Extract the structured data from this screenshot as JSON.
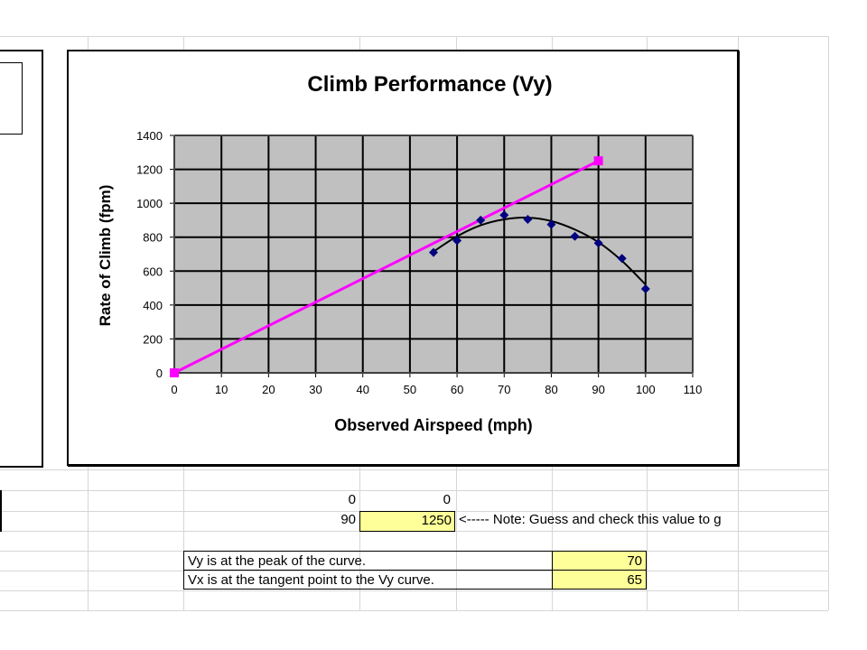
{
  "chart_data": {
    "type": "scatter",
    "title": "Climb Performance (Vy)",
    "xlabel": "Observed Airspeed (mph)",
    "ylabel": "Rate of Climb (fpm)",
    "xlim": [
      0,
      110
    ],
    "ylim": [
      0,
      1400
    ],
    "xticks": [
      0,
      10,
      20,
      30,
      40,
      50,
      60,
      70,
      80,
      90,
      100,
      110
    ],
    "yticks": [
      0,
      200,
      400,
      600,
      800,
      1000,
      1200,
      1400
    ],
    "grid": true,
    "legend": "none",
    "series": [
      {
        "type": "scatter",
        "color": "#000080",
        "marker": "diamond",
        "x": [
          55,
          60,
          65,
          70,
          75,
          80,
          85,
          90,
          95,
          100
        ],
        "y": [
          710,
          780,
          900,
          930,
          905,
          875,
          805,
          765,
          675,
          495
        ]
      },
      {
        "type": "trendline",
        "color": "#000000",
        "x": [
          55,
          60,
          65,
          70,
          75,
          80,
          85,
          90,
          95,
          100
        ],
        "y": [
          715,
          805,
          870,
          905,
          915,
          895,
          845,
          770,
          660,
          520
        ]
      },
      {
        "type": "line",
        "color": "#ff00ff",
        "marker": "square",
        "x": [
          0,
          90
        ],
        "y": [
          0,
          1250
        ]
      }
    ]
  },
  "sheet": {
    "row1": [
      "0",
      "0"
    ],
    "row2_x": "90",
    "row2_y": "1250",
    "note": "<-----   Note:  Guess and check this value to g",
    "table": [
      {
        "label": "Vy is at the peak of the curve.",
        "value": "70"
      },
      {
        "label": "Vx is at the tangent point to the Vy curve.",
        "value": "65"
      }
    ]
  }
}
